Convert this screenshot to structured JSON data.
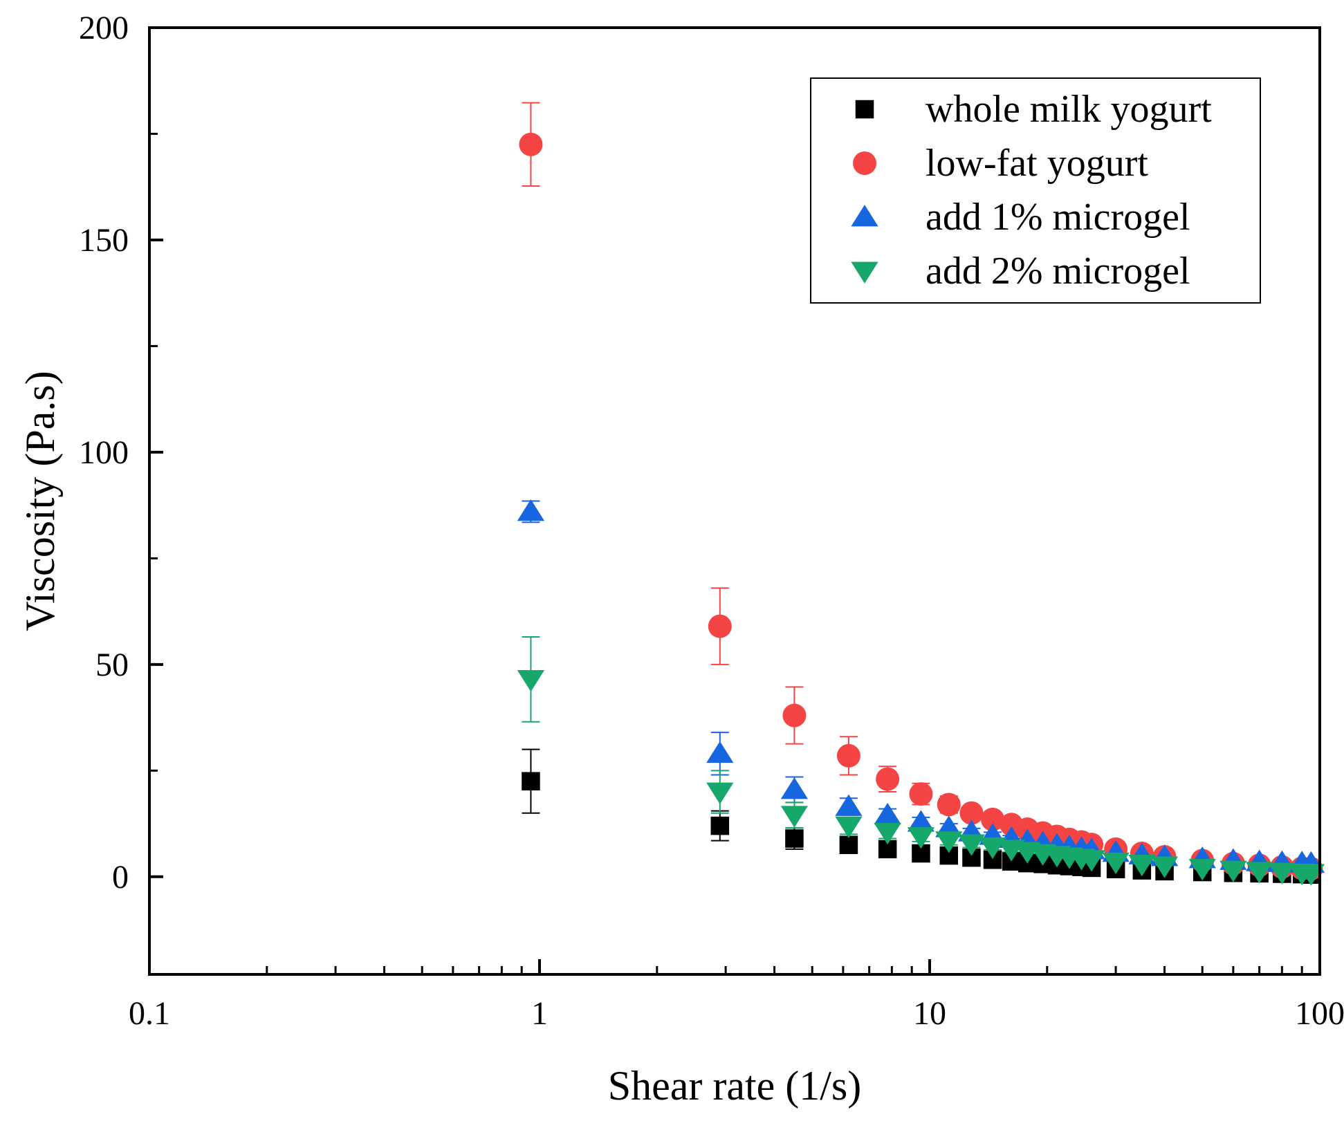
{
  "chart_data": {
    "type": "scatter",
    "title": "",
    "xlabel": "Shear rate (1/s)",
    "ylabel": "Viscosity (Pa.s)",
    "xscale": "log",
    "xlim": [
      0.1,
      100
    ],
    "ylim": [
      -23,
      200
    ],
    "xticks": [
      {
        "value": 0.1,
        "label": "0.1"
      },
      {
        "value": 1,
        "label": "1"
      },
      {
        "value": 10,
        "label": "10"
      },
      {
        "value": 100,
        "label": "100"
      }
    ],
    "yticks": [
      {
        "value": 0,
        "label": "0"
      },
      {
        "value": 50,
        "label": "50"
      },
      {
        "value": 100,
        "label": "100"
      },
      {
        "value": 150,
        "label": "150"
      },
      {
        "value": 200,
        "label": "200"
      }
    ],
    "grid": false,
    "legend_position": "top-right",
    "series": [
      {
        "name": "whole milk yogurt",
        "marker": "square",
        "color": "#000000",
        "x": [
          0.95,
          2.9,
          4.5,
          6.2,
          7.8,
          9.5,
          11.2,
          12.8,
          14.5,
          16.2,
          17.8,
          19.5,
          21.2,
          22.8,
          24.5,
          26,
          30,
          35,
          40,
          50,
          60,
          70,
          80,
          90,
          95
        ],
        "y": [
          22.5,
          12,
          9,
          7.5,
          6.5,
          5.5,
          5,
          4.5,
          4,
          3.6,
          3.2,
          3,
          2.7,
          2.5,
          2.3,
          2.1,
          1.8,
          1.5,
          1.3,
          1.1,
          0.9,
          0.8,
          0.7,
          0.6,
          0.5
        ],
        "err": [
          7.5,
          3.5,
          2.5,
          1.5,
          1,
          0.8,
          0.7,
          0.6,
          0.5,
          0.4,
          0.4,
          0.3,
          0.3,
          0.3,
          0.2,
          0.2,
          0.2,
          0.2,
          0.1,
          0.1,
          0.1,
          0.1,
          0.1,
          0.1,
          0.1
        ]
      },
      {
        "name": "low-fat yogurt",
        "marker": "circle",
        "color": "#f54444",
        "x": [
          0.95,
          2.9,
          4.5,
          6.2,
          7.8,
          9.5,
          11.2,
          12.8,
          14.5,
          16.2,
          17.8,
          19.5,
          21.2,
          22.8,
          24.5,
          26,
          30,
          35,
          40,
          50,
          60,
          70,
          80,
          90,
          95
        ],
        "y": [
          172.5,
          59,
          38,
          28.5,
          23,
          19.5,
          17,
          15,
          13.5,
          12.3,
          11.2,
          10.3,
          9.5,
          8.8,
          8.2,
          7.6,
          6.5,
          5.5,
          4.7,
          3.8,
          3.1,
          2.7,
          2.3,
          2,
          1.9
        ],
        "err": [
          9.8,
          9,
          6.7,
          4.5,
          3,
          2.5,
          2,
          1.5,
          1.2,
          1,
          0.9,
          0.8,
          0.7,
          0.6,
          0.6,
          0.5,
          0.5,
          0.4,
          0.4,
          0.3,
          0.3,
          0.2,
          0.2,
          0.2,
          0.2
        ]
      },
      {
        "name": "add 1% microgel",
        "marker": "triangle-up",
        "color": "#1666e0",
        "x": [
          0.95,
          2.9,
          4.5,
          6.2,
          7.8,
          9.5,
          11.2,
          12.8,
          14.5,
          16.2,
          17.8,
          19.5,
          21.2,
          22.8,
          24.5,
          26,
          30,
          35,
          40,
          50,
          60,
          70,
          80,
          90,
          95
        ],
        "y": [
          86,
          29,
          20.5,
          16.5,
          14.5,
          12.8,
          11.5,
          10.5,
          9.7,
          9,
          8.4,
          7.9,
          7.4,
          7,
          6.6,
          6.3,
          5.7,
          5.1,
          4.7,
          4.2,
          3.8,
          3.5,
          3.3,
          3.2,
          3.1
        ],
        "err": [
          2.5,
          5,
          3,
          2,
          1.5,
          1.2,
          1,
          0.9,
          0.8,
          0.7,
          0.6,
          0.6,
          0.5,
          0.5,
          0.5,
          0.4,
          0.4,
          0.4,
          0.3,
          0.3,
          0.3,
          0.3,
          0.2,
          0.2,
          0.2
        ]
      },
      {
        "name": "add 2% microgel",
        "marker": "triangle-down",
        "color": "#15a86a",
        "x": [
          0.95,
          2.9,
          4.5,
          6.2,
          7.8,
          9.5,
          11.2,
          12.8,
          14.5,
          16.2,
          17.8,
          19.5,
          21.2,
          22.8,
          24.5,
          26,
          30,
          35,
          40,
          50,
          60,
          70,
          80,
          90,
          95
        ],
        "y": [
          46.5,
          20,
          14.5,
          12,
          10.5,
          9.5,
          8.5,
          7.8,
          7.1,
          6.5,
          6,
          5.5,
          5.1,
          4.7,
          4.4,
          4.1,
          3.5,
          3,
          2.6,
          2,
          1.6,
          1.3,
          1.1,
          0.9,
          0.8
        ],
        "err": [
          10,
          5,
          3,
          2,
          1.5,
          1.2,
          1,
          0.9,
          0.8,
          0.7,
          0.6,
          0.6,
          0.5,
          0.5,
          0.4,
          0.4,
          0.4,
          0.3,
          0.3,
          0.3,
          0.2,
          0.2,
          0.2,
          0.2,
          0.2
        ]
      }
    ]
  }
}
